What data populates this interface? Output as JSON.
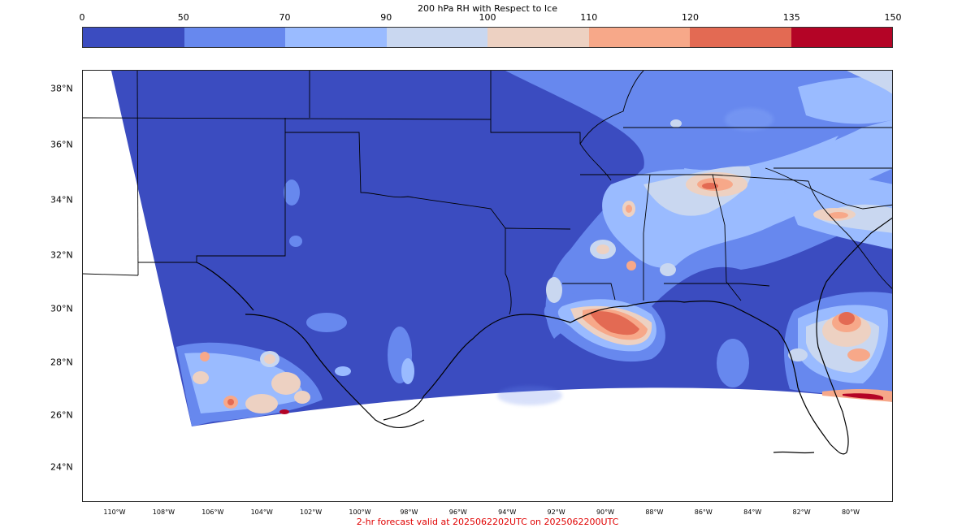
{
  "colorbar": {
    "title": "200 hPa RH with Respect to Ice",
    "ticks": [
      "0",
      "50",
      "70",
      "90",
      "100",
      "110",
      "120",
      "135",
      "150"
    ],
    "colors": [
      "#3b4cc0",
      "#6788ee",
      "#9abbff",
      "#c9d7f0",
      "#edd1c2",
      "#f7a889",
      "#e36a53",
      "#b40426"
    ]
  },
  "latitude_labels": [
    "38°N",
    "36°N",
    "34°N",
    "32°N",
    "30°N",
    "28°N",
    "26°N",
    "24°N"
  ],
  "longitude_labels": [
    "110°W",
    "108°W",
    "106°W",
    "104°W",
    "102°W",
    "100°W",
    "98°W",
    "96°W",
    "94°W",
    "92°W",
    "90°W",
    "88°W",
    "86°W",
    "84°W",
    "82°W",
    "80°W"
  ],
  "footer": "2-hr forecast valid at 2025062202UTC on 2025062200UTC"
}
